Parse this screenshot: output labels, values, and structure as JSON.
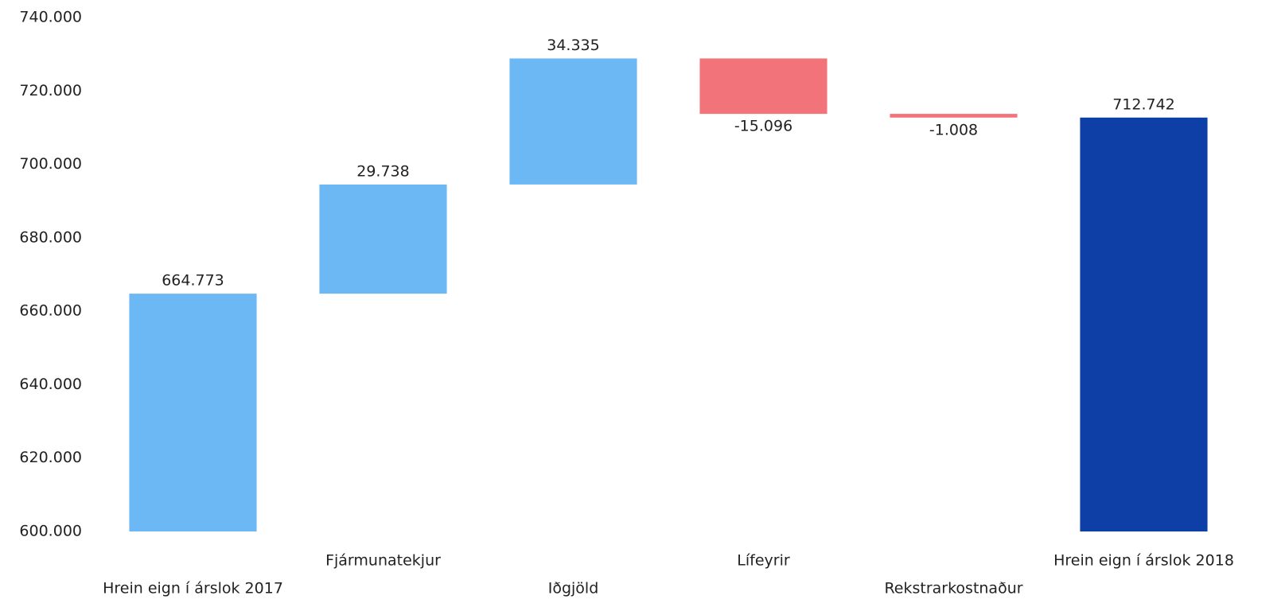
{
  "chart_data": {
    "type": "waterfall",
    "categories": [
      "Hrein eign í árslok 2017",
      "Fjármunatekjur",
      "Iðgjöld",
      "Lífeyrir",
      "Rekstrarkostnaður",
      "Hrein eign í árslok 2018"
    ],
    "values": [
      664773,
      29738,
      34335,
      -15096,
      -1008,
      712742
    ],
    "value_labels": [
      "664.773",
      "29.738",
      "34.335",
      "-15.096",
      "-1.008",
      "712.742"
    ],
    "colors": [
      "#6cb8f5",
      "#6cb8f5",
      "#6cb8f5",
      "#f2737a",
      "#f2737a",
      "#0d3fa6"
    ],
    "ylim": [
      600000,
      740000
    ],
    "yticks": [
      {
        "value": 600000,
        "label": "600.000"
      },
      {
        "value": 620000,
        "label": "620.000"
      },
      {
        "value": 640000,
        "label": "640.000"
      },
      {
        "value": 660000,
        "label": "660.000"
      },
      {
        "value": 680000,
        "label": "680.000"
      },
      {
        "value": 700000,
        "label": "700.000"
      },
      {
        "value": 720000,
        "label": "720.000"
      },
      {
        "value": 740000,
        "label": "740.000"
      }
    ],
    "grid": false
  }
}
